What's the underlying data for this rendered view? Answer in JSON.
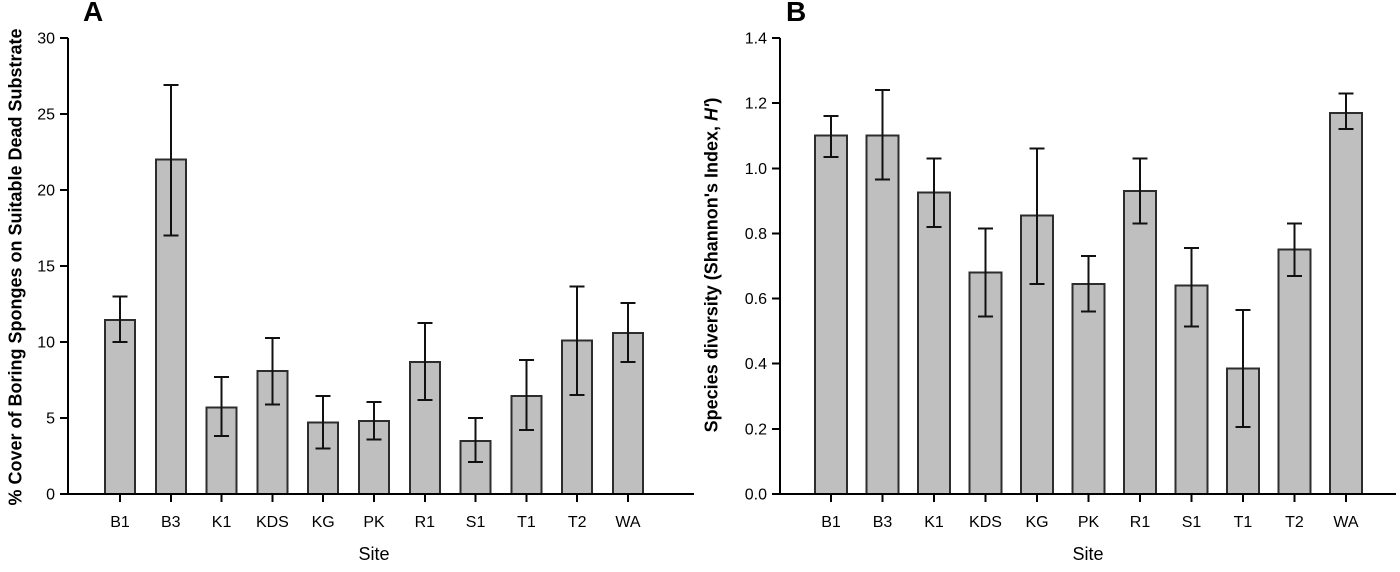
{
  "figure": {
    "panels": [
      {
        "letter": "A",
        "xlabel": "Site",
        "ylabel_prefix": "% Cover of Boring Sponges on Suitable Dead Substrate",
        "ylabel_italic": "",
        "ylabel_suffix": ""
      },
      {
        "letter": "B",
        "xlabel": "Site",
        "ylabel_prefix": "Species diversity (Shannon's Index, ",
        "ylabel_italic": "H'",
        "ylabel_suffix": ")"
      }
    ]
  },
  "colors": {
    "background": "#ffffff",
    "bar_fill": "#bfbfbf",
    "bar_border": "#2d2d2d",
    "error_bar": "#111111",
    "axis": "#000000",
    "text": "#000000"
  },
  "chart_data": [
    {
      "type": "bar",
      "panel": "A",
      "xlabel": "Site",
      "ylabel": "% Cover of Boring Sponges on Suitable Dead Substrate",
      "categories": [
        "B1",
        "B3",
        "K1",
        "KDS",
        "KG",
        "PK",
        "R1",
        "S1",
        "T1",
        "T2",
        "WA"
      ],
      "values": [
        11.45,
        22.0,
        5.7,
        8.1,
        4.7,
        4.8,
        8.7,
        3.5,
        6.45,
        10.1,
        10.6
      ],
      "error_low": [
        10.0,
        17.0,
        3.8,
        5.9,
        3.0,
        3.6,
        6.2,
        2.1,
        4.2,
        6.5,
        8.7
      ],
      "error_high": [
        13.0,
        26.9,
        7.7,
        10.25,
        6.45,
        6.05,
        11.25,
        5.0,
        8.8,
        13.65,
        12.55
      ],
      "ylim": [
        0,
        30
      ],
      "grid": false,
      "legend": "none",
      "yticks": [
        {
          "value": 0,
          "label": "0"
        },
        {
          "value": 5,
          "label": "5"
        },
        {
          "value": 10,
          "label": "10"
        },
        {
          "value": 15,
          "label": "15"
        },
        {
          "value": 20,
          "label": "20"
        },
        {
          "value": 25,
          "label": "25"
        },
        {
          "value": 30,
          "label": "30"
        }
      ]
    },
    {
      "type": "bar",
      "panel": "B",
      "xlabel": "Site",
      "ylabel": "Species diversity (Shannon's Index, H')",
      "categories": [
        "B1",
        "B3",
        "K1",
        "KDS",
        "KG",
        "PK",
        "R1",
        "S1",
        "T1",
        "T2",
        "WA"
      ],
      "values": [
        1.1,
        1.1,
        0.925,
        0.68,
        0.855,
        0.645,
        0.93,
        0.64,
        0.385,
        0.75,
        1.17
      ],
      "error_low": [
        1.035,
        0.965,
        0.82,
        0.545,
        0.645,
        0.56,
        0.83,
        0.515,
        0.205,
        0.67,
        1.12
      ],
      "error_high": [
        1.16,
        1.24,
        1.03,
        0.815,
        1.06,
        0.73,
        1.03,
        0.755,
        0.565,
        0.83,
        1.23
      ],
      "ylim": [
        0,
        1.4
      ],
      "grid": false,
      "legend": "none",
      "yticks": [
        {
          "value": 0.0,
          "label": "0.0"
        },
        {
          "value": 0.2,
          "label": "0.2"
        },
        {
          "value": 0.4,
          "label": "0.4"
        },
        {
          "value": 0.6,
          "label": "0.6"
        },
        {
          "value": 0.8,
          "label": "0.8"
        },
        {
          "value": 1.0,
          "label": "1.0"
        },
        {
          "value": 1.2,
          "label": "1.2"
        },
        {
          "value": 1.4,
          "label": "1.4"
        }
      ]
    }
  ]
}
